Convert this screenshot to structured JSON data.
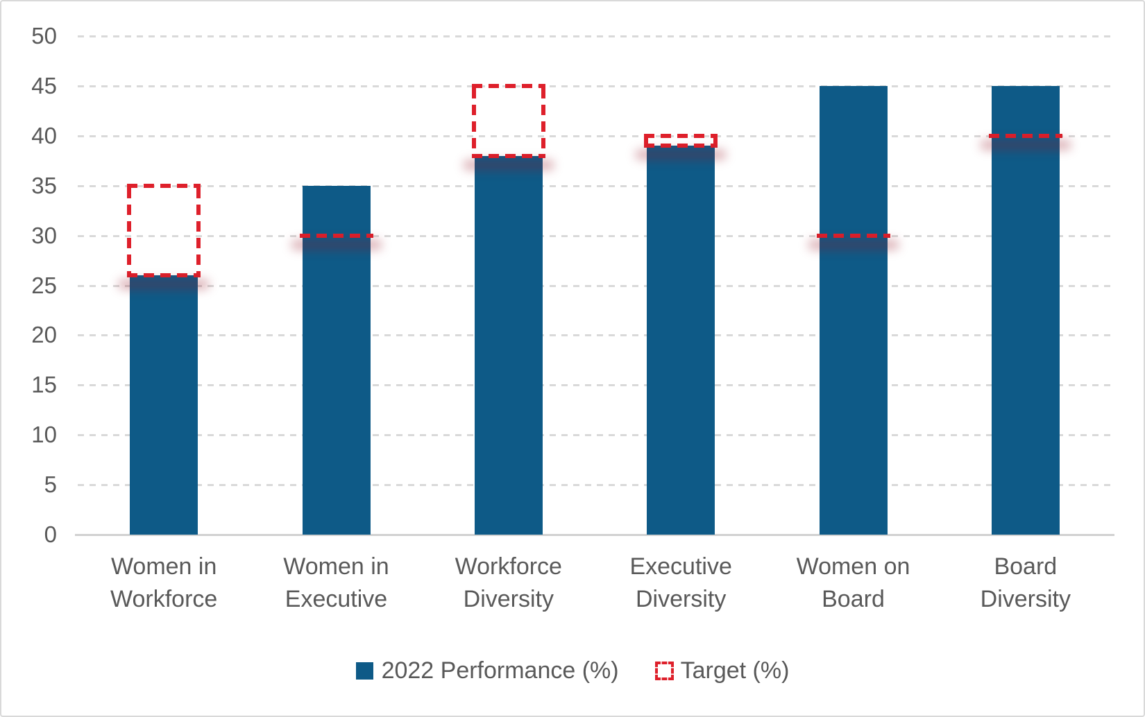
{
  "chart_data": {
    "type": "bar",
    "categories": [
      "Women in Workforce",
      "Women in Executive",
      "Workforce Diversity",
      "Executive Diversity",
      "Women on Board",
      "Board Diversity"
    ],
    "category_lines": [
      [
        "Women in",
        "Workforce"
      ],
      [
        "Women in",
        "Executive"
      ],
      [
        "Workforce",
        "Diversity"
      ],
      [
        "Executive",
        "Diversity"
      ],
      [
        "Women on",
        "Board"
      ],
      [
        "Board",
        "Diversity"
      ]
    ],
    "series": [
      {
        "name": "2022 Performance (%)",
        "type": "bar",
        "values": [
          26,
          35,
          38,
          39,
          45,
          45
        ],
        "color": "#0e5a87"
      },
      {
        "name": "Target (%)",
        "type": "dashed-outline",
        "values": [
          35,
          30,
          45,
          40,
          30,
          40
        ],
        "color": "#de202b"
      }
    ],
    "ylim": [
      0,
      50
    ],
    "ytick_step": 5,
    "ytick_labels": [
      "0",
      "5",
      "10",
      "15",
      "20",
      "25",
      "30",
      "35",
      "40",
      "45",
      "50"
    ],
    "xlabel": "",
    "ylabel": "",
    "grid": "horizontal-dashed",
    "legend_position": "bottom-center"
  },
  "colors": {
    "bar_blue": "#0e5a87",
    "target_red": "#de202b",
    "gridline_gray": "#d9d9d9",
    "axis_line_gray": "#d1d1d1",
    "text_gray": "#595959",
    "glow_red": "rgba(150,20,35,0.30)",
    "background": "#ffffff",
    "border": "#d9d9d9"
  },
  "legend": {
    "performance_label": "2022 Performance (%)",
    "target_label": "Target (%)"
  }
}
